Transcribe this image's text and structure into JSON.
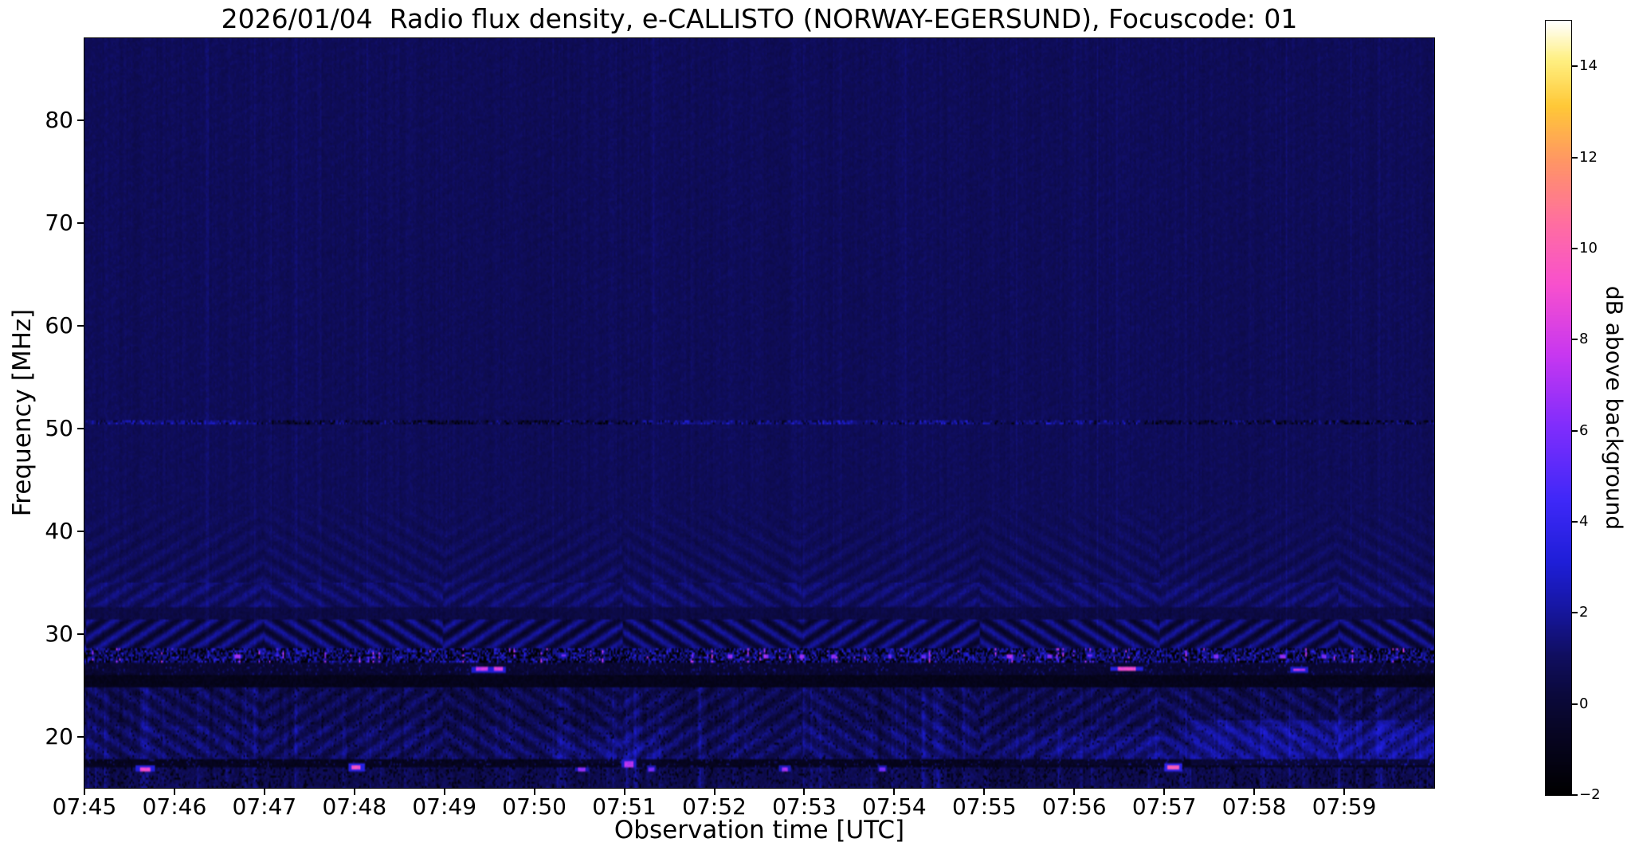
{
  "page": {
    "background": "#ffffff"
  },
  "chart_data": {
    "type": "heatmap",
    "title": "2026/01/04  Radio flux density, e-CALLISTO (NORWAY-EGERSUND), Focuscode: 01",
    "xlabel": "Observation time [UTC]",
    "ylabel": "Frequency [MHz]",
    "x_ticks": [
      "07:45",
      "07:46",
      "07:47",
      "07:48",
      "07:49",
      "07:50",
      "07:51",
      "07:52",
      "07:53",
      "07:54",
      "07:55",
      "07:56",
      "07:57",
      "07:58",
      "07:59"
    ],
    "x_range": {
      "start": "07:45",
      "end": "08:00",
      "minutes": 15
    },
    "y_ticks": [
      80,
      70,
      60,
      50,
      40,
      30,
      20
    ],
    "y_range_mhz": [
      15,
      88
    ],
    "grid": false,
    "colorbar": {
      "label": "dB above background",
      "ticks": [
        14,
        12,
        10,
        8,
        6,
        4,
        2,
        0,
        -2
      ],
      "range": [
        -2,
        15
      ],
      "colormap_stops": [
        [
          0.0,
          0,
          0,
          0
        ],
        [
          0.08,
          7,
          5,
          35
        ],
        [
          0.13,
          11,
          9,
          60
        ],
        [
          0.18,
          16,
          14,
          95
        ],
        [
          0.24,
          22,
          22,
          160
        ],
        [
          0.3,
          30,
          30,
          215
        ],
        [
          0.38,
          62,
          40,
          248
        ],
        [
          0.48,
          130,
          45,
          252
        ],
        [
          0.57,
          200,
          55,
          240
        ],
        [
          0.66,
          248,
          80,
          205
        ],
        [
          0.74,
          255,
          110,
          160
        ],
        [
          0.82,
          255,
          150,
          100
        ],
        [
          0.89,
          255,
          200,
          55
        ],
        [
          0.95,
          255,
          240,
          130
        ],
        [
          1.0,
          255,
          255,
          255
        ]
      ]
    },
    "heatmap": {
      "background_db": 0.9,
      "bands": [
        {
          "f_hi": 88.0,
          "f_lo": 50.75,
          "kind": "flat"
        },
        {
          "f_hi": 50.75,
          "f_lo": 50.3,
          "kind": "line"
        },
        {
          "f_hi": 50.3,
          "f_lo": 42.5,
          "kind": "flat"
        },
        {
          "f_hi": 42.5,
          "f_lo": 35.0,
          "kind": "ripple",
          "amp": 0.42
        },
        {
          "f_hi": 35.0,
          "f_lo": 32.6,
          "kind": "band_noise",
          "amp": 0.5,
          "lift": 0.22
        },
        {
          "f_hi": 32.6,
          "f_lo": 31.4,
          "kind": "dim",
          "drop": 0.35
        },
        {
          "f_hi": 31.4,
          "f_lo": 28.5,
          "kind": "chevron",
          "amp": 1.25
        },
        {
          "f_hi": 28.5,
          "f_lo": 27.1,
          "kind": "rfi_speckle"
        },
        {
          "f_hi": 27.1,
          "f_lo": 26.0,
          "kind": "dim_speckle"
        },
        {
          "f_hi": 26.0,
          "f_lo": 24.9,
          "kind": "dark"
        },
        {
          "f_hi": 24.9,
          "f_lo": 21.0,
          "kind": "low_chevron",
          "amp": 0.55,
          "lift": 0.0
        },
        {
          "f_hi": 21.0,
          "f_lo": 17.8,
          "kind": "low_chevron",
          "amp": 0.6,
          "lift": 0.3
        },
        {
          "f_hi": 17.8,
          "f_lo": 17.0,
          "kind": "dark_dots"
        },
        {
          "f_hi": 17.0,
          "f_lo": 15.0,
          "kind": "bottom"
        }
      ],
      "regional_boosts": [
        {
          "t0": 12.3,
          "t1": 15.0,
          "f0": 17.2,
          "f1": 21.5,
          "add": 0.85
        },
        {
          "t0": 10.2,
          "t1": 12.2,
          "f0": 17.2,
          "f1": 20.0,
          "add": 0.4
        },
        {
          "t0": 5.2,
          "t1": 6.4,
          "f0": 17.5,
          "f1": 19.5,
          "add": 0.45
        }
      ],
      "bright_features": {
        "columns": [
          "t_min",
          "freq_mhz",
          "width_min",
          "height_mhz",
          "db"
        ],
        "rows": [
          [
            0.68,
            16.85,
            0.12,
            0.5,
            9.5
          ],
          [
            3.02,
            17.0,
            0.1,
            0.5,
            10.0
          ],
          [
            4.42,
            26.5,
            0.14,
            0.4,
            8.5
          ],
          [
            4.6,
            26.5,
            0.1,
            0.4,
            9.0
          ],
          [
            5.52,
            16.8,
            0.08,
            0.4,
            7.0
          ],
          [
            6.05,
            17.4,
            0.1,
            0.6,
            8.0
          ],
          [
            6.3,
            16.9,
            0.06,
            0.4,
            6.5
          ],
          [
            7.78,
            16.9,
            0.07,
            0.4,
            7.5
          ],
          [
            8.87,
            16.85,
            0.06,
            0.4,
            6.5
          ],
          [
            11.58,
            26.6,
            0.2,
            0.35,
            9.5
          ],
          [
            12.1,
            17.0,
            0.12,
            0.5,
            10.5
          ],
          [
            13.5,
            26.5,
            0.12,
            0.35,
            8.5
          ],
          [
            1.7,
            27.8,
            0.06,
            0.4,
            7.5
          ],
          [
            5.32,
            27.9,
            0.05,
            0.35,
            6.5
          ],
          [
            7.18,
            27.8,
            0.05,
            0.35,
            7.0
          ],
          [
            7.58,
            27.85,
            0.05,
            0.35,
            7.0
          ],
          [
            7.97,
            27.8,
            0.05,
            0.35,
            7.5
          ],
          [
            8.32,
            27.75,
            0.05,
            0.35,
            7.0
          ],
          [
            8.95,
            27.8,
            0.05,
            0.35,
            6.5
          ],
          [
            9.33,
            27.85,
            0.05,
            0.35,
            6.0
          ],
          [
            10.28,
            27.8,
            0.06,
            0.35,
            7.5
          ],
          [
            10.72,
            27.85,
            0.05,
            0.35,
            6.5
          ],
          [
            11.18,
            27.9,
            0.05,
            0.35,
            7.0
          ],
          [
            12.58,
            27.8,
            0.05,
            0.35,
            7.0
          ],
          [
            13.32,
            27.85,
            0.06,
            0.35,
            7.0
          ],
          [
            13.78,
            27.8,
            0.05,
            0.35,
            6.5
          ]
        ]
      }
    }
  }
}
